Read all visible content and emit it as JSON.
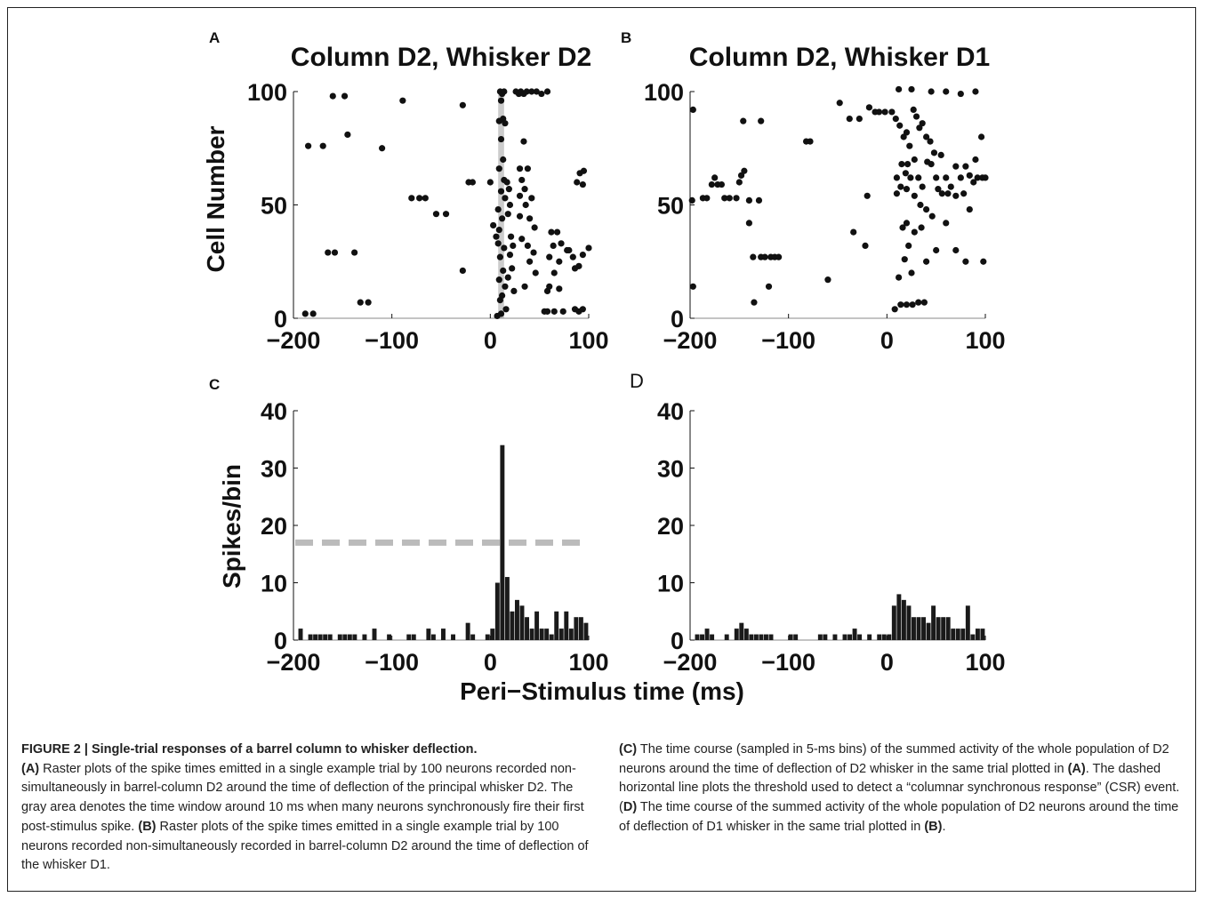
{
  "panels": {
    "A": {
      "letter": "A",
      "title": "Column D2, Whisker D2"
    },
    "B": {
      "letter": "B",
      "title": "Column D2, Whisker D1"
    },
    "C": {
      "letter": "C"
    },
    "D": {
      "letter": "D"
    }
  },
  "labels": {
    "raster_ylabel": "Cell Number",
    "psth_ylabel": "Spikes/bin",
    "shared_xlabel": "Peri−Stimulus time (ms)"
  },
  "caption": {
    "figure_label": "FIGURE 2 | Single-trial responses of a barrel column to whisker deflection.",
    "A_ref": "(A)",
    "A_text": " Raster plots of the spike times emitted in a single example trial by 100 neurons recorded non-simultaneously in barrel-column D2 around the time of deflection of the principal whisker D2. The gray area denotes the time window around 10 ms when many neurons synchronously fire their first post-stimulus spike. ",
    "B_ref": "(B)",
    "B_text": " Raster plots of the spike times emitted in a single example trial by 100 neurons recorded non-simultaneously recorded in barrel-column D2 around the time of deflection of the whisker D1. ",
    "C_ref": "(C)",
    "C_text": " The time course (sampled in 5-ms bins) of the summed activity of the whole population of D2 neurons around the time of deflection of D2 whisker in the same trial plotted in ",
    "C_ref2": "(A)",
    "C_text2": ". The dashed horizontal line plots the threshold used to detect a “columnar synchronous response” (CSR) event. (",
    "D_ref": "D)",
    "D_text": " The time course of the summed activity of the whole population of D2 neurons around the time of deflection of D1 whisker in the same trial plotted in ",
    "D_ref2": "(B)",
    "D_text2": "."
  },
  "colors": {
    "ink": "#111111",
    "gray_window": "#cccccc",
    "threshold": "#bbbbbb",
    "bar": "#1a1a1a"
  },
  "chart_data": [
    {
      "panel": "A",
      "type": "scatter",
      "title": "Column D2, Whisker D2",
      "xlabel": "",
      "ylabel": "Cell Number",
      "xlim": [
        -200,
        100
      ],
      "ylim": [
        0,
        100
      ],
      "xticks": [
        "−200",
        "−100",
        "0",
        "100"
      ],
      "xtick_values": [
        -200,
        -100,
        0,
        100
      ],
      "yticks": [
        "0",
        "50",
        "100"
      ],
      "ytick_values": [
        0,
        50,
        100
      ],
      "shaded_window": [
        8,
        14
      ],
      "points": [
        [
          -188,
          2
        ],
        [
          -180,
          2
        ],
        [
          -185,
          76
        ],
        [
          -170,
          76
        ],
        [
          -160,
          98
        ],
        [
          -148,
          98
        ],
        [
          -145,
          81
        ],
        [
          -165,
          29
        ],
        [
          -158,
          29
        ],
        [
          -138,
          29
        ],
        [
          -132,
          7
        ],
        [
          -124,
          7
        ],
        [
          -110,
          75
        ],
        [
          -89,
          96
        ],
        [
          -80,
          53
        ],
        [
          -72,
          53
        ],
        [
          -66,
          53
        ],
        [
          -55,
          46
        ],
        [
          -45,
          46
        ],
        [
          -28,
          94
        ],
        [
          -22,
          60
        ],
        [
          -18,
          60
        ],
        [
          -28,
          21
        ],
        [
          0,
          60
        ],
        [
          3,
          41
        ],
        [
          6,
          36
        ],
        [
          8,
          33
        ],
        [
          10,
          100
        ],
        [
          12,
          99
        ],
        [
          14,
          100
        ],
        [
          11,
          96
        ],
        [
          13,
          88
        ],
        [
          9,
          87
        ],
        [
          15,
          86
        ],
        [
          11,
          79
        ],
        [
          13,
          70
        ],
        [
          9,
          66
        ],
        [
          14,
          61
        ],
        [
          11,
          56
        ],
        [
          15,
          53
        ],
        [
          8,
          48
        ],
        [
          12,
          44
        ],
        [
          9,
          39
        ],
        [
          14,
          31
        ],
        [
          10,
          27
        ],
        [
          13,
          21
        ],
        [
          9,
          17
        ],
        [
          15,
          14
        ],
        [
          12,
          10
        ],
        [
          10,
          8
        ],
        [
          16,
          4
        ],
        [
          11,
          2
        ],
        [
          7,
          1
        ],
        [
          17,
          60
        ],
        [
          19,
          57
        ],
        [
          20,
          50
        ],
        [
          18,
          46
        ],
        [
          21,
          36
        ],
        [
          23,
          32
        ],
        [
          20,
          28
        ],
        [
          22,
          22
        ],
        [
          18,
          18
        ],
        [
          24,
          12
        ],
        [
          26,
          100
        ],
        [
          29,
          99
        ],
        [
          31,
          100
        ],
        [
          34,
          99
        ],
        [
          37,
          100
        ],
        [
          42,
          100
        ],
        [
          47,
          100
        ],
        [
          52,
          99
        ],
        [
          58,
          100
        ],
        [
          34,
          78
        ],
        [
          30,
          66
        ],
        [
          38,
          66
        ],
        [
          32,
          61
        ],
        [
          35,
          57
        ],
        [
          30,
          54
        ],
        [
          42,
          53
        ],
        [
          36,
          50
        ],
        [
          30,
          45
        ],
        [
          40,
          44
        ],
        [
          45,
          40
        ],
        [
          32,
          35
        ],
        [
          38,
          32
        ],
        [
          44,
          29
        ],
        [
          40,
          25
        ],
        [
          46,
          20
        ],
        [
          35,
          14
        ],
        [
          62,
          38
        ],
        [
          68,
          38
        ],
        [
          64,
          32
        ],
        [
          60,
          27
        ],
        [
          70,
          25
        ],
        [
          65,
          20
        ],
        [
          60,
          14
        ],
        [
          55,
          3
        ],
        [
          58,
          3
        ],
        [
          65,
          3
        ],
        [
          74,
          3
        ],
        [
          86,
          4
        ],
        [
          90,
          3
        ],
        [
          94,
          4
        ],
        [
          58,
          12
        ],
        [
          70,
          13
        ],
        [
          72,
          33
        ],
        [
          78,
          30
        ],
        [
          84,
          27
        ],
        [
          90,
          23
        ],
        [
          94,
          28
        ],
        [
          88,
          60
        ],
        [
          91,
          64
        ],
        [
          95,
          65
        ],
        [
          94,
          59
        ],
        [
          100,
          31
        ],
        [
          80,
          30
        ],
        [
          86,
          22
        ]
      ]
    },
    {
      "panel": "B",
      "type": "scatter",
      "title": "Column D2, Whisker D1",
      "xlabel": "",
      "ylabel": "",
      "xlim": [
        -200,
        100
      ],
      "ylim": [
        0,
        100
      ],
      "xticks": [
        "−200",
        "−100",
        "0",
        "100"
      ],
      "xtick_values": [
        -200,
        -100,
        0,
        100
      ],
      "yticks": [
        "0",
        "50",
        "100"
      ],
      "ytick_values": [
        0,
        50,
        100
      ],
      "points": [
        [
          -197,
          92
        ],
        [
          -198,
          52
        ],
        [
          -197,
          14
        ],
        [
          -187,
          53
        ],
        [
          -183,
          53
        ],
        [
          -178,
          59
        ],
        [
          -172,
          59
        ],
        [
          -168,
          59
        ],
        [
          -175,
          62
        ],
        [
          -165,
          53
        ],
        [
          -160,
          53
        ],
        [
          -153,
          53
        ],
        [
          -150,
          60
        ],
        [
          -148,
          63
        ],
        [
          -145,
          65
        ],
        [
          -140,
          52
        ],
        [
          -130,
          52
        ],
        [
          -146,
          87
        ],
        [
          -128,
          87
        ],
        [
          -140,
          42
        ],
        [
          -135,
          7
        ],
        [
          -136,
          27
        ],
        [
          -128,
          27
        ],
        [
          -124,
          27
        ],
        [
          -118,
          27
        ],
        [
          -114,
          27
        ],
        [
          -110,
          27
        ],
        [
          -120,
          14
        ],
        [
          -82,
          78
        ],
        [
          -78,
          78
        ],
        [
          -60,
          17
        ],
        [
          -48,
          95
        ],
        [
          -38,
          88
        ],
        [
          -34,
          38
        ],
        [
          -28,
          88
        ],
        [
          -22,
          32
        ],
        [
          -20,
          54
        ],
        [
          -18,
          93
        ],
        [
          -12,
          91
        ],
        [
          -8,
          91
        ],
        [
          -2,
          91
        ],
        [
          5,
          91
        ],
        [
          9,
          88
        ],
        [
          13,
          85
        ],
        [
          17,
          80
        ],
        [
          20,
          82
        ],
        [
          23,
          76
        ],
        [
          21,
          68
        ],
        [
          27,
          92
        ],
        [
          30,
          89
        ],
        [
          33,
          84
        ],
        [
          36,
          86
        ],
        [
          40,
          80
        ],
        [
          44,
          78
        ],
        [
          48,
          73
        ],
        [
          12,
          101
        ],
        [
          25,
          101
        ],
        [
          45,
          100
        ],
        [
          60,
          100
        ],
        [
          75,
          99
        ],
        [
          90,
          100
        ],
        [
          15,
          68
        ],
        [
          19,
          64
        ],
        [
          24,
          62
        ],
        [
          28,
          70
        ],
        [
          32,
          62
        ],
        [
          36,
          58
        ],
        [
          41,
          69
        ],
        [
          45,
          68
        ],
        [
          50,
          62
        ],
        [
          55,
          72
        ],
        [
          60,
          62
        ],
        [
          65,
          58
        ],
        [
          70,
          67
        ],
        [
          75,
          62
        ],
        [
          80,
          67
        ],
        [
          84,
          63
        ],
        [
          88,
          60
        ],
        [
          92,
          62
        ],
        [
          97,
          62
        ],
        [
          100,
          62
        ],
        [
          10,
          62
        ],
        [
          14,
          58
        ],
        [
          20,
          57
        ],
        [
          28,
          54
        ],
        [
          34,
          50
        ],
        [
          40,
          48
        ],
        [
          46,
          45
        ],
        [
          52,
          57
        ],
        [
          56,
          55
        ],
        [
          62,
          55
        ],
        [
          70,
          54
        ],
        [
          78,
          55
        ],
        [
          84,
          48
        ],
        [
          90,
          70
        ],
        [
          96,
          80
        ],
        [
          98,
          25
        ],
        [
          10,
          55
        ],
        [
          16,
          40
        ],
        [
          22,
          32
        ],
        [
          18,
          26
        ],
        [
          25,
          20
        ],
        [
          12,
          18
        ],
        [
          8,
          4
        ],
        [
          14,
          6
        ],
        [
          20,
          6
        ],
        [
          26,
          6
        ],
        [
          32,
          7
        ],
        [
          38,
          7
        ],
        [
          20,
          42
        ],
        [
          28,
          38
        ],
        [
          35,
          40
        ],
        [
          40,
          25
        ],
        [
          50,
          30
        ],
        [
          60,
          42
        ],
        [
          70,
          30
        ],
        [
          80,
          25
        ]
      ]
    },
    {
      "panel": "C",
      "type": "bar",
      "title": "",
      "xlabel": "Peri−Stimulus time (ms)",
      "ylabel": "Spikes/bin",
      "xlim": [
        -200,
        100
      ],
      "ylim": [
        0,
        40
      ],
      "bin_ms": 5,
      "xticks": [
        "−200",
        "−100",
        "0",
        "100"
      ],
      "xtick_values": [
        -200,
        -100,
        0,
        100
      ],
      "yticks": [
        "0",
        "10",
        "20",
        "30",
        "40"
      ],
      "ytick_values": [
        0,
        10,
        20,
        30,
        40
      ],
      "threshold": 17,
      "x": [
        -200,
        -195,
        -190,
        -185,
        -180,
        -175,
        -170,
        -165,
        -160,
        -155,
        -150,
        -145,
        -140,
        -135,
        -130,
        -125,
        -120,
        -115,
        -110,
        -105,
        -100,
        -95,
        -90,
        -85,
        -80,
        -75,
        -70,
        -65,
        -60,
        -55,
        -50,
        -45,
        -40,
        -35,
        -30,
        -25,
        -20,
        -15,
        -10,
        -5,
        0,
        5,
        10,
        15,
        20,
        25,
        30,
        35,
        40,
        45,
        50,
        55,
        60,
        65,
        70,
        75,
        80,
        85,
        90,
        95
      ],
      "values": [
        0,
        2,
        0,
        1,
        1,
        1,
        1,
        1,
        0,
        1,
        1,
        1,
        1,
        0,
        1,
        0,
        2,
        0,
        0,
        1,
        0,
        0,
        0,
        1,
        1,
        0,
        0,
        2,
        1,
        0,
        2,
        0,
        1,
        0,
        0,
        3,
        1,
        0,
        0,
        1,
        2,
        10,
        34,
        11,
        5,
        7,
        6,
        4,
        2,
        5,
        2,
        2,
        1,
        5,
        2,
        5,
        2,
        4,
        4,
        3
      ]
    },
    {
      "panel": "D",
      "type": "bar",
      "title": "",
      "xlabel": "Peri−Stimulus time (ms)",
      "ylabel": "",
      "xlim": [
        -200,
        100
      ],
      "ylim": [
        0,
        40
      ],
      "bin_ms": 5,
      "xticks": [
        "−200",
        "−100",
        "0",
        "100"
      ],
      "xtick_values": [
        -200,
        -100,
        0,
        100
      ],
      "yticks": [
        "0",
        "10",
        "20",
        "30",
        "40"
      ],
      "ytick_values": [
        0,
        10,
        20,
        30,
        40
      ],
      "x": [
        -200,
        -195,
        -190,
        -185,
        -180,
        -175,
        -170,
        -165,
        -160,
        -155,
        -150,
        -145,
        -140,
        -135,
        -130,
        -125,
        -120,
        -115,
        -110,
        -105,
        -100,
        -95,
        -90,
        -85,
        -80,
        -75,
        -70,
        -65,
        -60,
        -55,
        -50,
        -45,
        -40,
        -35,
        -30,
        -25,
        -20,
        -15,
        -10,
        -5,
        0,
        5,
        10,
        15,
        20,
        25,
        30,
        35,
        40,
        45,
        50,
        55,
        60,
        65,
        70,
        75,
        80,
        85,
        90,
        95
      ],
      "values": [
        0,
        1,
        1,
        2,
        1,
        0,
        0,
        1,
        0,
        2,
        3,
        2,
        1,
        1,
        1,
        1,
        1,
        0,
        0,
        0,
        1,
        1,
        0,
        0,
        0,
        0,
        1,
        1,
        0,
        1,
        0,
        1,
        1,
        2,
        1,
        0,
        1,
        0,
        1,
        1,
        1,
        6,
        8,
        7,
        6,
        4,
        4,
        4,
        3,
        6,
        4,
        4,
        4,
        2,
        2,
        2,
        6,
        1,
        2,
        2
      ]
    }
  ]
}
